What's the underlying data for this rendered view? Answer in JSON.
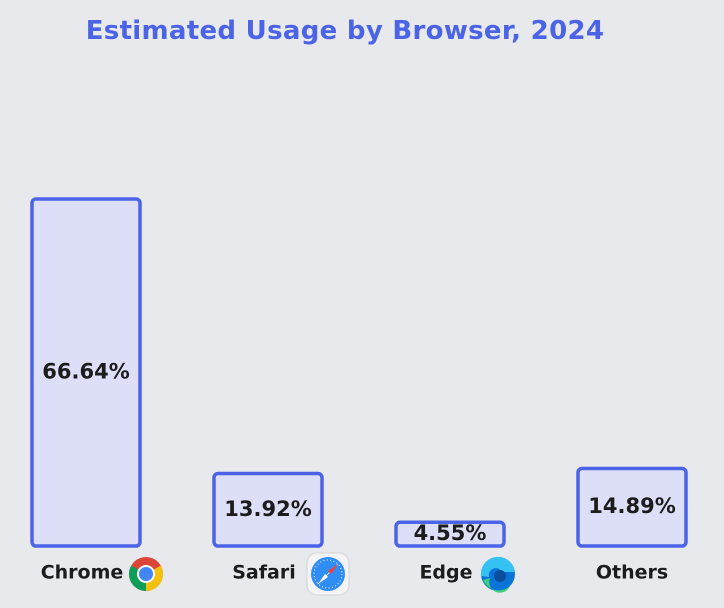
{
  "chart_data": {
    "type": "bar",
    "title": "Estimated Usage by Browser, 2024",
    "xlabel": "",
    "ylabel": "",
    "categories": [
      "Chrome",
      "Safari",
      "Edge",
      "Others"
    ],
    "values": [
      66.64,
      13.92,
      4.55,
      14.89
    ],
    "data_labels": [
      "66.64%",
      "13.92%",
      "4.55%",
      "14.89%"
    ],
    "category_icons": [
      "chrome-logo-icon",
      "safari-compass-icon",
      "edge-logo-icon",
      null
    ],
    "ylim": [
      0,
      66.64
    ],
    "grid": false,
    "legend": "none",
    "colors": {
      "background": "#e8e9ed",
      "bar_fill": "#dcdff7",
      "bar_stroke": "#4b63e6",
      "title": "#4b63e6",
      "text": "#1c1c1c"
    }
  }
}
